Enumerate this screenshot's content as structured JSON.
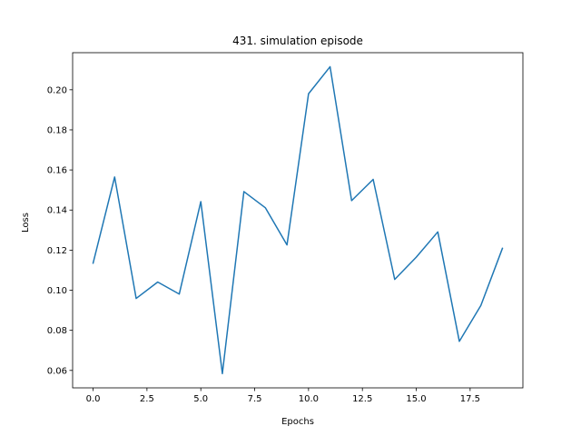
{
  "chart_data": {
    "type": "line",
    "title": "431. simulation episode",
    "xlabel": "Epochs",
    "ylabel": "Loss",
    "xlim": [
      -0.95,
      19.95
    ],
    "ylim": [
      0.0513,
      0.2185
    ],
    "xticks": [
      0.0,
      2.5,
      5.0,
      7.5,
      10.0,
      12.5,
      15.0,
      17.5
    ],
    "xtick_labels": [
      "0.0",
      "2.5",
      "5.0",
      "7.5",
      "10.0",
      "12.5",
      "15.0",
      "17.5"
    ],
    "yticks": [
      0.06,
      0.08,
      0.1,
      0.12,
      0.14,
      0.16,
      0.18,
      0.2
    ],
    "ytick_labels": [
      "0.06",
      "0.08",
      "0.10",
      "0.12",
      "0.14",
      "0.16",
      "0.18",
      "0.20"
    ],
    "grid": false,
    "series": [
      {
        "color": "#1f77b4",
        "x": [
          0,
          1,
          2,
          3,
          4,
          5,
          6,
          7,
          8,
          9,
          10,
          11,
          12,
          13,
          14,
          15,
          16,
          17,
          18,
          19
        ],
        "y": [
          0.1135,
          0.1565,
          0.0959,
          0.1041,
          0.0981,
          0.1442,
          0.0584,
          0.1492,
          0.1411,
          0.1226,
          0.198,
          0.2115,
          0.1447,
          0.1553,
          0.1054,
          0.1165,
          0.1291,
          0.0745,
          0.0924,
          0.1209
        ]
      }
    ]
  }
}
